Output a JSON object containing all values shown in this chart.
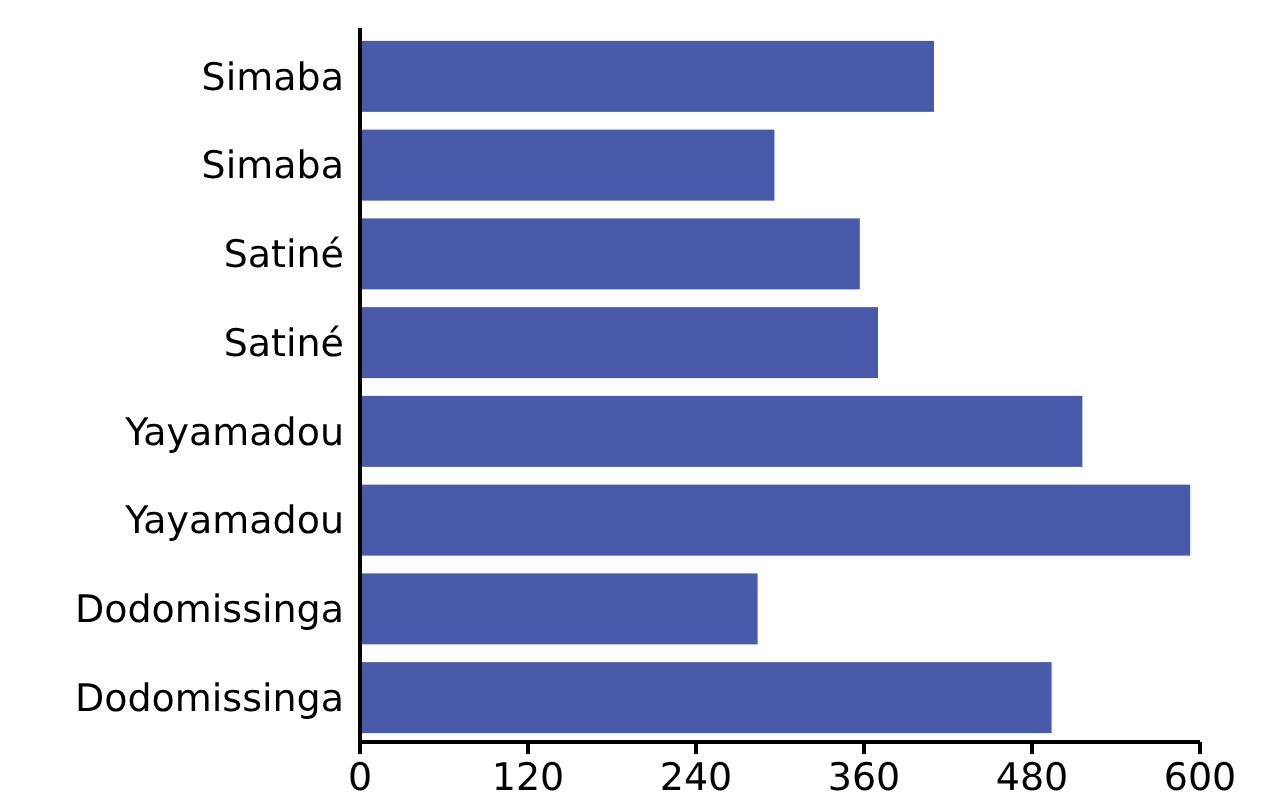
{
  "chart_data": {
    "type": "bar",
    "orientation": "horizontal",
    "categories": [
      "Simaba",
      "Simaba",
      "Satiné",
      "Satiné",
      "Yayamadou",
      "Yayamadou",
      "Dodomissinga",
      "Dodomissinga"
    ],
    "values": [
      410,
      296,
      357,
      370,
      516,
      593,
      284,
      494
    ],
    "color": "#4a5aaa",
    "xlim": [
      0,
      600
    ],
    "xticks": [
      0,
      120,
      240,
      360,
      480,
      600
    ],
    "grid": false
  }
}
